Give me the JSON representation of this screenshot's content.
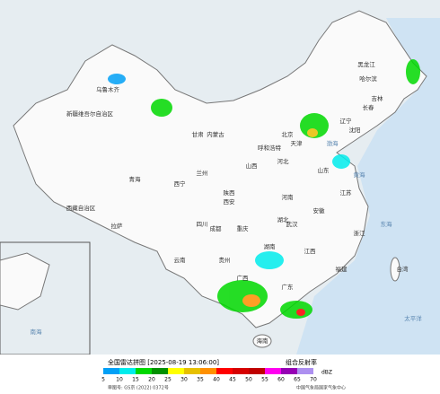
{
  "header": {
    "title": "全国雷达拼图 [2025-08-19 13:06:00]",
    "product": "组合反射率"
  },
  "legend": {
    "values": [
      5,
      10,
      15,
      20,
      25,
      30,
      35,
      40,
      45,
      50,
      55,
      60,
      65,
      70
    ],
    "colors": [
      "#01a0f6",
      "#00ecec",
      "#00d800",
      "#019000",
      "#ffff00",
      "#e7c000",
      "#ff9000",
      "#ff0000",
      "#d60000",
      "#c00000",
      "#ff00f0",
      "#9600b4",
      "#ad90f0"
    ],
    "unit": "dBZ"
  },
  "footer": {
    "approval": "审图号: GS京 (2022) 0372号",
    "credit": "中国气象局国家气象中心"
  },
  "map": {
    "labels": [
      "新疆维吾尔自治区",
      "乌鲁木齐",
      "西藏自治区",
      "拉萨",
      "青海",
      "西宁",
      "甘肃",
      "兰州",
      "内蒙古",
      "呼和浩特",
      "黑龙江",
      "哈尔滨",
      "吉林",
      "长春",
      "辽宁",
      "沈阳",
      "北京",
      "天津",
      "河北",
      "山西",
      "陕西",
      "西安",
      "四川",
      "成都",
      "重庆",
      "湖北",
      "武汉",
      "湖南",
      "河南",
      "山东",
      "江苏",
      "安徽",
      "浙江",
      "江西",
      "福建",
      "广东",
      "广西",
      "贵州",
      "云南",
      "海南",
      "台湾",
      "渤海",
      "黄海",
      "东海",
      "太平洋",
      "南海"
    ]
  }
}
